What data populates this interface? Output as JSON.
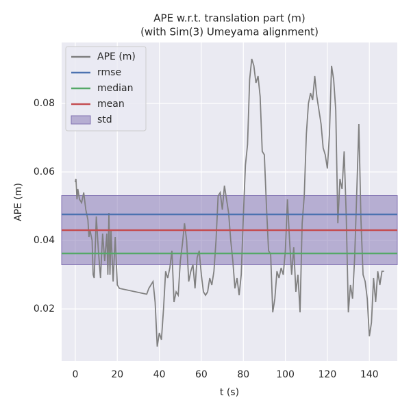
{
  "chart_data": {
    "type": "line",
    "title": "APE w.r.t. translation part (m)",
    "subtitle": "(with Sim(3) Umeyama alignment)",
    "xlabel": "t (s)",
    "ylabel": "APE (m)",
    "xlim": [
      -6.5,
      153.3
    ],
    "ylim": [
      0.0048,
      0.0978
    ],
    "xticks": [
      0,
      20,
      40,
      60,
      80,
      100,
      120,
      140
    ],
    "yticks": [
      0.02,
      0.04,
      0.06,
      0.08
    ],
    "grid": true,
    "legend": "upper-left",
    "series": [
      {
        "name": "APE (m)",
        "color": "#808080",
        "x": [
          0,
          0.3,
          0.8,
          1.2,
          2,
          3,
          4,
          5,
          6,
          6.5,
          7,
          8,
          8.5,
          9,
          10,
          11,
          12,
          13,
          14,
          15,
          15.5,
          16,
          16.5,
          17,
          18,
          19,
          20,
          21,
          34,
          35,
          36,
          37,
          38,
          39,
          40,
          41,
          42,
          43,
          44,
          45,
          46,
          47,
          48,
          49,
          50,
          51,
          52,
          53,
          54,
          55,
          56,
          57,
          58,
          59,
          60,
          61,
          62,
          63,
          64,
          65,
          66,
          67,
          68,
          69,
          70,
          71,
          72,
          73,
          74,
          75,
          76,
          77,
          78,
          79,
          80,
          81,
          82,
          83,
          84,
          85,
          86,
          87,
          88,
          89,
          90,
          91,
          92,
          93,
          94,
          95,
          96,
          97,
          98,
          99,
          100,
          101,
          102,
          103,
          104,
          105,
          106,
          107,
          108,
          109,
          110,
          111,
          112,
          113,
          114,
          115,
          116,
          117,
          118,
          119,
          120,
          121,
          122,
          123,
          124,
          125,
          126,
          127,
          128,
          129,
          130,
          131,
          132,
          133,
          134,
          135,
          136,
          137,
          138,
          139,
          140,
          141,
          142,
          143,
          144,
          145,
          146,
          147
        ],
        "values": [
          0.057,
          0.058,
          0.052,
          0.055,
          0.052,
          0.051,
          0.054,
          0.049,
          0.046,
          0.041,
          0.043,
          0.04,
          0.03,
          0.029,
          0.047,
          0.037,
          0.029,
          0.042,
          0.034,
          0.042,
          0.03,
          0.048,
          0.03,
          0.043,
          0.028,
          0.041,
          0.027,
          0.026,
          0.0243,
          0.026,
          0.027,
          0.028,
          0.022,
          0.009,
          0.013,
          0.011,
          0.02,
          0.031,
          0.029,
          0.032,
          0.037,
          0.022,
          0.025,
          0.024,
          0.034,
          0.039,
          0.045,
          0.04,
          0.028,
          0.031,
          0.033,
          0.026,
          0.035,
          0.037,
          0.03,
          0.025,
          0.024,
          0.025,
          0.029,
          0.027,
          0.031,
          0.04,
          0.053,
          0.054,
          0.049,
          0.056,
          0.052,
          0.048,
          0.04,
          0.034,
          0.026,
          0.029,
          0.024,
          0.03,
          0.047,
          0.062,
          0.068,
          0.087,
          0.093,
          0.091,
          0.086,
          0.088,
          0.082,
          0.066,
          0.065,
          0.05,
          0.037,
          0.036,
          0.019,
          0.023,
          0.031,
          0.029,
          0.032,
          0.03,
          0.037,
          0.052,
          0.04,
          0.03,
          0.038,
          0.025,
          0.03,
          0.019,
          0.045,
          0.053,
          0.071,
          0.08,
          0.083,
          0.081,
          0.088,
          0.082,
          0.078,
          0.074,
          0.067,
          0.065,
          0.061,
          0.071,
          0.091,
          0.087,
          0.078,
          0.045,
          0.058,
          0.055,
          0.066,
          0.047,
          0.019,
          0.027,
          0.023,
          0.035,
          0.054,
          0.074,
          0.046,
          0.03,
          0.028,
          0.023,
          0.012,
          0.016,
          0.029,
          0.022,
          0.031,
          0.027,
          0.031,
          0.031
        ]
      }
    ],
    "hlines": [
      {
        "name": "rmse",
        "color": "#4c72b0",
        "value": 0.0476
      },
      {
        "name": "median",
        "color": "#55a868",
        "value": 0.0362
      },
      {
        "name": "mean",
        "color": "#c44e52",
        "value": 0.043
      }
    ],
    "band": {
      "name": "std",
      "color": "#8172b2",
      "value": 0.0101
    }
  }
}
